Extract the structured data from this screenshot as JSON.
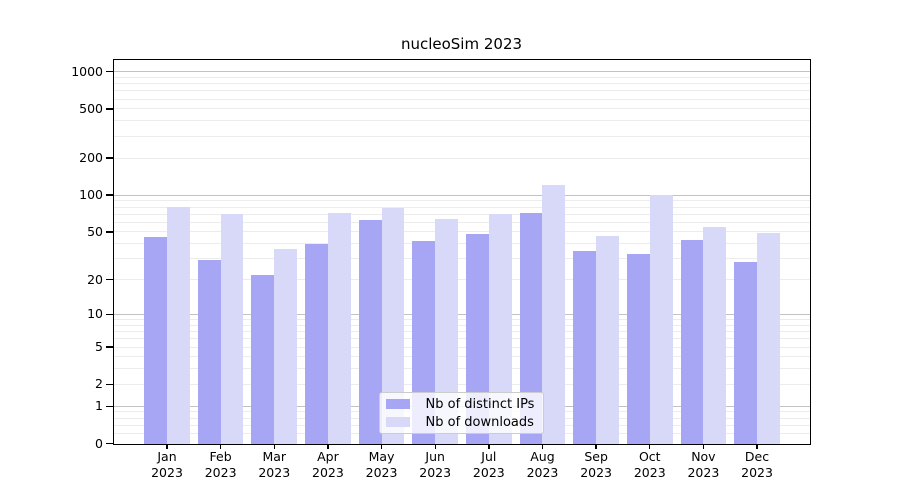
{
  "title": "nucleoSim 2023",
  "chart_data": {
    "type": "bar",
    "title": "nucleoSim 2023",
    "categories": [
      "Jan 2023",
      "Feb 2023",
      "Mar 2023",
      "Apr 2023",
      "May 2023",
      "Jun 2023",
      "Jul 2023",
      "Aug 2023",
      "Sep 2023",
      "Oct 2023",
      "Nov 2023",
      "Dec 2023"
    ],
    "series": [
      {
        "name": "Nb of distinct IPs",
        "color": "#a6a6f5",
        "values": [
          45,
          29,
          22,
          40,
          63,
          42,
          48,
          72,
          35,
          33,
          43,
          28
        ]
      },
      {
        "name": "Nb of downloads",
        "color": "#d8d8f9",
        "values": [
          80,
          70,
          36,
          72,
          78,
          64,
          70,
          120,
          46,
          100,
          55,
          49
        ]
      }
    ],
    "xlabel": "",
    "ylabel": "",
    "yscale": "log(value+1)",
    "ylim": [
      0,
      1270
    ],
    "y_ticks": [
      1000,
      500,
      200,
      100,
      50,
      20,
      10,
      5,
      2,
      1,
      0
    ],
    "grid": "horizontal major+minor",
    "legend_position": "lower center",
    "legend_entries": [
      "Nb of distinct IPs",
      "Nb of downloads"
    ]
  },
  "colors": {
    "major_grid": "#c2c2c2",
    "minor_grid": "#ececec",
    "spine": "#000000",
    "legend_border": "#cccccc"
  }
}
